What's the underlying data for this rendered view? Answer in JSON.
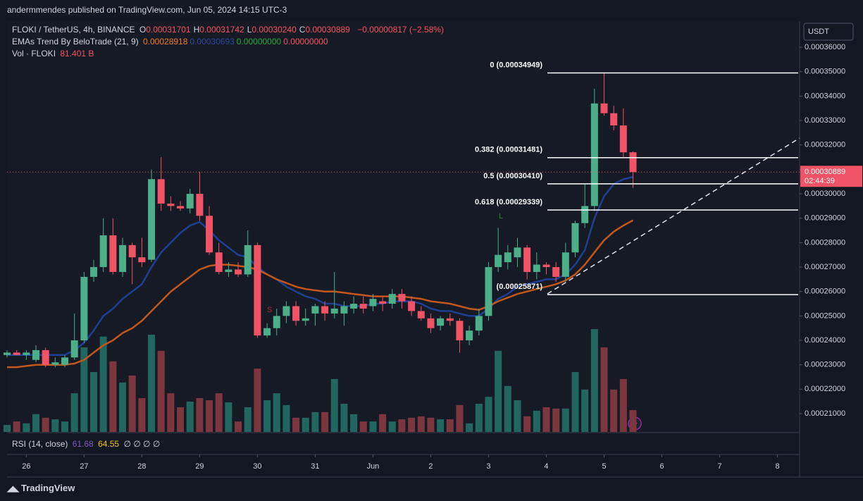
{
  "header": {
    "published": "andermmendes published on TradingView.com, Jun 05, 2024 14:15 UTC-3",
    "symbol": "FLOKI / TetherUS, 4h, BINANCE",
    "ohlc": [
      {
        "key": "O",
        "value": "0.00031701"
      },
      {
        "key": "H",
        "value": "0.00031742"
      },
      {
        "key": "L",
        "value": "0.00030240"
      },
      {
        "key": "C",
        "value": "0.00030889"
      }
    ],
    "change": "−0.00000817 (−2.58%)",
    "indicator": "EMAs Trend By BeloTrade (21, 9)",
    "indicator_values": [
      {
        "text": "0.00028918",
        "color": "#f57c1f"
      },
      {
        "text": "0.00030693",
        "color": "#2a4a9e"
      },
      {
        "text": "0.00000000",
        "color": "#22ab3c"
      },
      {
        "text": "0.00000000",
        "color": "#f7525f"
      }
    ],
    "volume_label": "Vol · FLOKI",
    "volume_value": "81.401 B",
    "rsi_label": "RSI (14, close)",
    "rsi_values": [
      "61.68",
      "64.55"
    ],
    "rsi_empty": "∅ ∅ ∅ ∅",
    "currency": "USDT",
    "countdown": "02:44:39",
    "footer": "TradingView"
  },
  "chart_data": {
    "type": "candlestick",
    "up_color": "#4caf89",
    "down_color": "#f05365",
    "volume_up_color": "#22675f",
    "volume_down_color": "#7b3640",
    "open": [
      0.000234,
      0.000235,
      0.000234,
      0.000232,
      0.000236,
      0.00023,
      0.00023,
      0.000233,
      0.00024,
      0.000266,
      0.00027,
      0.000283,
      0.000268,
      0.000279,
      0.000274,
      0.000273,
      0.000306,
      0.000296,
      0.000295,
      0.000294,
      0.0003,
      0.000291,
      0.000276,
      0.000268,
      0.000269,
      0.000267,
      0.000279,
      0.000242,
      0.000245,
      0.00025,
      0.000254,
      0.000248,
      0.000251,
      0.000254,
      0.000251,
      0.000251,
      0.000253,
      0.000255,
      0.000254,
      0.000256,
      0.000255,
      0.000259,
      0.000256,
      0.000252,
      0.000249,
      0.000246,
      0.000249,
      0.000248,
      0.00024,
      0.000244,
      0.00025,
      0.00027,
      0.000272,
      0.000274,
      0.000278,
      0.000268,
      0.000271,
      0.00027,
      0.000266,
      0.000276,
      0.000288,
      0.000295,
      0.000337,
      0.000333,
      0.000328,
      0.00031701
    ],
    "high": [
      0.000236,
      0.000236,
      0.000236,
      0.000238,
      0.000237,
      0.000233,
      0.000234,
      0.000251,
      0.000268,
      0.000273,
      0.00029,
      0.00029,
      0.000282,
      0.00028,
      0.000282,
      0.00031,
      0.000315,
      0.000299,
      0.000297,
      0.000302,
      0.000309,
      0.000295,
      0.00028,
      0.000272,
      0.000272,
      0.000285,
      0.00028,
      0.000247,
      0.000253,
      0.000256,
      0.000256,
      0.000253,
      0.000255,
      0.000256,
      0.000268,
      0.000256,
      0.000258,
      0.000258,
      0.000259,
      0.000258,
      0.000261,
      0.000261,
      0.000258,
      0.000254,
      0.000251,
      0.00025,
      0.000251,
      0.000249,
      0.000246,
      0.000253,
      0.000272,
      0.000286,
      0.000279,
      0.000282,
      0.000279,
      0.000276,
      0.000272,
      0.000272,
      0.00028,
      0.000289,
      0.000304,
      0.000343,
      0.00034949,
      0.000336,
      0.000335,
      0.00031742
    ],
    "low": [
      0.000233,
      0.000234,
      0.000232,
      0.000231,
      0.000229,
      0.000229,
      0.000229,
      0.000232,
      0.000239,
      0.000264,
      0.000268,
      0.000267,
      0.000266,
      0.000263,
      0.00027,
      0.000272,
      0.000293,
      0.000293,
      0.000293,
      0.000292,
      0.000289,
      0.000275,
      0.000267,
      0.000266,
      0.000266,
      0.000266,
      0.000241,
      0.000241,
      0.000242,
      0.000247,
      0.000246,
      0.000246,
      0.000246,
      0.000248,
      0.000249,
      0.000246,
      0.000251,
      0.000251,
      0.000252,
      0.000252,
      0.000253,
      0.000253,
      0.00025,
      0.000248,
      0.000243,
      0.000244,
      0.000246,
      0.000235,
      0.000238,
      0.000242,
      0.000248,
      0.000268,
      0.000269,
      0.00027,
      0.000265,
      0.000265,
      0.000267,
      0.000264,
      0.000264,
      0.000274,
      0.000286,
      0.000293,
      0.000332,
      0.000326,
      0.000315,
      0.0003024
    ],
    "close": [
      0.000235,
      0.000234,
      0.000235,
      0.000236,
      0.00023,
      0.000231,
      0.000233,
      0.00024,
      0.000266,
      0.00027,
      0.000283,
      0.000268,
      0.000279,
      0.000274,
      0.000272,
      0.000306,
      0.000296,
      0.000295,
      0.000294,
      0.0003,
      0.000291,
      0.000276,
      0.000268,
      0.000269,
      0.000267,
      0.000279,
      0.000242,
      0.000245,
      0.00025,
      0.000254,
      0.000248,
      0.000249,
      0.000254,
      0.000251,
      0.000253,
      0.000254,
      0.000255,
      0.000253,
      0.000257,
      0.000255,
      0.000259,
      0.000256,
      0.000252,
      0.000249,
      0.000245,
      0.000249,
      0.000248,
      0.00024,
      0.000244,
      0.00025,
      0.00027,
      0.000275,
      0.000276,
      0.000278,
      0.000268,
      0.000271,
      0.00027,
      0.000266,
      0.000276,
      0.000288,
      0.000295,
      0.000337,
      0.000333,
      0.000328,
      0.000317,
      0.00030889
    ],
    "volume": [
      26,
      39,
      32,
      66,
      53,
      47,
      39,
      144,
      315,
      223,
      355,
      263,
      184,
      210,
      126,
      362,
      302,
      144,
      92,
      113,
      126,
      118,
      144,
      110,
      39,
      92,
      236,
      118,
      144,
      100,
      53,
      53,
      74,
      74,
      197,
      105,
      66,
      39,
      39,
      66,
      39,
      47,
      53,
      58,
      53,
      47,
      47,
      100,
      32,
      105,
      131,
      302,
      171,
      118,
      58,
      79,
      92,
      87,
      87,
      223,
      158,
      383,
      315,
      158,
      197,
      81.401
    ],
    "series": [
      {
        "name": "EMA 9",
        "color": "#1f3f93",
        "values": [
          0.000234,
          0.000234,
          0.000234,
          0.000234,
          0.000234,
          0.000234,
          0.000234,
          0.000236,
          0.000239,
          0.000244,
          0.00025,
          0.000253,
          0.000257,
          0.00026,
          0.000263,
          0.00027,
          0.000276,
          0.00028,
          0.000284,
          0.000287,
          0.0002885,
          0.000285,
          0.000281,
          0.000278,
          0.000275,
          0.000274,
          0.00027,
          0.000267,
          0.000265,
          0.000262,
          0.00026,
          0.000258,
          0.000257,
          0.000255,
          0.000255,
          0.000254,
          0.000254,
          0.000254,
          0.000255,
          0.000255,
          0.000256,
          0.000256,
          0.000256,
          0.000255,
          0.000253,
          0.000252,
          0.000252,
          0.000251,
          0.00025,
          0.00025,
          0.000253,
          0.000257,
          0.000259,
          0.000262,
          0.000263,
          0.000264,
          0.000265,
          0.000265,
          0.000267,
          0.000271,
          0.000277,
          0.00029,
          0.000299,
          0.000304,
          0.000306,
          0.00030693
        ]
      },
      {
        "name": "EMA 21",
        "color": "#c2561b",
        "values": [
          0.000229,
          0.000229,
          0.0002295,
          0.00023,
          0.00023,
          0.00023,
          0.00023,
          0.0002305,
          0.000232,
          0.000235,
          0.000238,
          0.00024,
          0.000243,
          0.000245,
          0.000248,
          0.000252,
          0.000256,
          0.00026,
          0.000263,
          0.000266,
          0.000269,
          0.0002705,
          0.000271,
          0.000271,
          0.0002705,
          0.00027,
          0.000269,
          0.000267,
          0.000265,
          0.0002635,
          0.000262,
          0.000261,
          0.0002605,
          0.00026,
          0.00026,
          0.0002595,
          0.000259,
          0.0002585,
          0.000258,
          0.000258,
          0.000258,
          0.000258,
          0.0002575,
          0.000257,
          0.000256,
          0.0002555,
          0.000255,
          0.000254,
          0.000253,
          0.0002525,
          0.000254,
          0.000256,
          0.0002575,
          0.000259,
          0.00026,
          0.000261,
          0.000262,
          0.000263,
          0.0002645,
          0.000267,
          0.000271,
          0.000276,
          0.000281,
          0.0002845,
          0.000287,
          0.00028918
        ]
      }
    ],
    "ylim": [
      0.0002025,
      0.0003707
    ],
    "yticks": [
      {
        "value": 0.00036,
        "label": "0.00036000"
      },
      {
        "value": 0.00035,
        "label": "0.00035000"
      },
      {
        "value": 0.00034,
        "label": "0.00034000"
      },
      {
        "value": 0.00033,
        "label": "0.00033000"
      },
      {
        "value": 0.00032,
        "label": "0.00032000"
      },
      {
        "value": 0.00031,
        "label": "0.00031000"
      },
      {
        "value": 0.0003,
        "label": "0.00030000"
      },
      {
        "value": 0.00029,
        "label": "0.00029000"
      },
      {
        "value": 0.00028,
        "label": "0.00028000"
      },
      {
        "value": 0.00027,
        "label": "0.00027000"
      },
      {
        "value": 0.00026,
        "label": "0.00026000"
      },
      {
        "value": 0.00025,
        "label": "0.00025000"
      },
      {
        "value": 0.00024,
        "label": "0.00024000"
      },
      {
        "value": 0.00023,
        "label": "0.00023000"
      },
      {
        "value": 0.00022,
        "label": "0.00022000"
      },
      {
        "value": 0.00021,
        "label": "0.00021000"
      }
    ],
    "xlim": [
      0,
      82.3
    ],
    "xticks": [
      {
        "value": 2,
        "label": "26"
      },
      {
        "value": 8,
        "label": "27"
      },
      {
        "value": 14,
        "label": "28"
      },
      {
        "value": 20,
        "label": "29"
      },
      {
        "value": 26,
        "label": "30"
      },
      {
        "value": 32,
        "label": "31"
      },
      {
        "value": 38,
        "label": "Jun"
      },
      {
        "value": 44,
        "label": "2"
      },
      {
        "value": 50,
        "label": "3"
      },
      {
        "value": 56,
        "label": "4"
      },
      {
        "value": 62,
        "label": "5"
      },
      {
        "value": 68,
        "label": "6"
      },
      {
        "value": 74,
        "label": "7"
      },
      {
        "value": 80,
        "label": "8"
      }
    ],
    "fib_levels": [
      {
        "ratio": "0",
        "price": 0.00034949,
        "price_label": "(0.00034949)"
      },
      {
        "ratio": "0.382",
        "price": 0.00031481,
        "price_label": "(0.00031481)"
      },
      {
        "ratio": "0.5",
        "price": 0.0003041,
        "price_label": "(0.00030410)"
      },
      {
        "ratio": "0.618",
        "price": 0.00029339,
        "price_label": "(0.00029339)"
      },
      {
        "price": 0.00025871,
        "price_label": "(0.00025871)"
      }
    ],
    "signals": [
      "L",
      "S"
    ]
  }
}
